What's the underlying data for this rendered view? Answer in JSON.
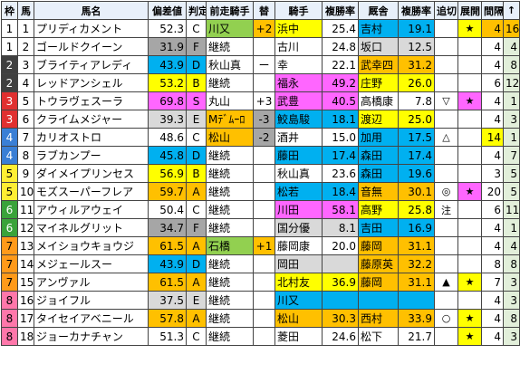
{
  "headers": [
    "枠",
    "馬",
    "馬名",
    "偏差値",
    "判定",
    "前走騎手",
    "替",
    "騎手",
    "複勝率",
    "厩舎",
    "複勝率",
    "追切",
    "展開",
    "間隔",
    "↑"
  ],
  "gate_colors": {
    "1": "#ffffff",
    "2": "#404040",
    "3": "#e03030",
    "4": "#3a7fd5",
    "5": "#ffee33",
    "6": "#3aa33a",
    "7": "#ff9a1a",
    "8": "#ff77aa"
  },
  "rows": [
    {
      "gate": "1",
      "num": "1",
      "name": "プリディカメント",
      "score": "52.3",
      "grade": "C",
      "prev": "川又",
      "chg": "+2",
      "jockey": "浜中",
      "jrate": "25.4",
      "stable": "吉村",
      "srate": "19.1",
      "oikiri": "",
      "tenkai": "★",
      "interval": "4",
      "up": "16",
      "cls": {
        "prev": "hl-green",
        "chg": "hl-orange",
        "jockey": "hl-yellow",
        "srate": "hl-cyan",
        "stable": "hl-cyan",
        "tenkai": "hl-yellow",
        "interval": "hl-orange",
        "up": "hl-orange"
      }
    },
    {
      "gate": "1",
      "num": "2",
      "name": "ゴールドクイーン",
      "score": "31.9",
      "grade": "F",
      "prev": "継続",
      "chg": "",
      "jockey": "古川",
      "jrate": "24.8",
      "stable": "坂口",
      "srate": "12.5",
      "oikiri": "",
      "tenkai": "",
      "interval": "4",
      "up": "4",
      "cls": {
        "score": "hl-gray",
        "grade": "hl-gray",
        "stable": "hl-lightgray",
        "srate": "hl-lightgray",
        "up": "hl-rowgreen"
      }
    },
    {
      "gate": "2",
      "num": "3",
      "name": "ブライティアレディ",
      "score": "43.9",
      "grade": "D",
      "prev": "秋山真",
      "chg": "ー",
      "jockey": "幸",
      "jrate": "22.1",
      "stable": "武幸四",
      "srate": "31.2",
      "oikiri": "",
      "tenkai": "",
      "interval": "4",
      "up": "8",
      "cls": {
        "score": "hl-cyan",
        "grade": "hl-cyan",
        "stable": "hl-orange",
        "srate": "hl-orange",
        "up": "hl-rowgreen"
      }
    },
    {
      "gate": "2",
      "num": "4",
      "name": "レッドアンシェル",
      "score": "53.2",
      "grade": "B",
      "prev": "継続",
      "chg": "",
      "jockey": "福永",
      "jrate": "49.2",
      "stable": "庄野",
      "srate": "26.0",
      "oikiri": "",
      "tenkai": "",
      "interval": "6",
      "up": "12",
      "cls": {
        "score": "hl-yellow",
        "grade": "hl-yellow",
        "jockey": "hl-pink",
        "jrate": "hl-pink",
        "stable": "hl-yellow",
        "srate": "hl-yellow",
        "up": "hl-rowgreen"
      }
    },
    {
      "gate": "3",
      "num": "5",
      "name": "トウラヴェスーラ",
      "score": "69.8",
      "grade": "S",
      "prev": "丸山",
      "chg": "+3",
      "jockey": "武豊",
      "jrate": "40.5",
      "stable": "高橋康",
      "srate": "7.8",
      "oikiri": "▽",
      "tenkai": "★",
      "interval": "4",
      "up": "1",
      "cls": {
        "score": "hl-pink",
        "grade": "hl-pink",
        "jockey": "hl-pink",
        "jrate": "hl-pink",
        "tenkai": "hl-pink",
        "up": "hl-rowgreen"
      }
    },
    {
      "gate": "3",
      "num": "6",
      "name": "クライムメジャー",
      "score": "39.3",
      "grade": "E",
      "prev": "Mﾃﾞﾑｰﾛ",
      "chg": "-3",
      "jockey": "鮫島駿",
      "jrate": "18.1",
      "stable": "渡辺",
      "srate": "25.0",
      "oikiri": "",
      "tenkai": "",
      "interval": "4",
      "up": "3",
      "cls": {
        "score": "hl-lightgray",
        "grade": "hl-lightgray",
        "prev": "hl-orange",
        "chg": "hl-gray",
        "jockey": "hl-cyan",
        "jrate": "hl-cyan",
        "stable": "hl-yellow",
        "srate": "hl-yellow",
        "up": "hl-rowgreen"
      }
    },
    {
      "gate": "4",
      "num": "7",
      "name": "カリオストロ",
      "score": "48.6",
      "grade": "C",
      "prev": "松山",
      "chg": "-2",
      "jockey": "酒井",
      "jrate": "15.0",
      "stable": "加用",
      "srate": "17.5",
      "oikiri": "△",
      "tenkai": "",
      "interval": "14",
      "up": "1",
      "cls": {
        "prev": "hl-orange",
        "chg": "hl-gray",
        "stable": "hl-cyan",
        "srate": "hl-cyan",
        "interval": "hl-yellow",
        "up": "hl-rowgreen"
      }
    },
    {
      "gate": "4",
      "num": "8",
      "name": "ラブカンプー",
      "score": "45.8",
      "grade": "D",
      "prev": "継続",
      "chg": "",
      "jockey": "藤田",
      "jrate": "17.4",
      "stable": "森田",
      "srate": "17.4",
      "oikiri": "",
      "tenkai": "",
      "interval": "4",
      "up": "7",
      "cls": {
        "score": "hl-cyan",
        "grade": "hl-cyan",
        "jockey": "hl-cyan",
        "jrate": "hl-cyan",
        "stable": "hl-cyan",
        "srate": "hl-cyan",
        "up": "hl-rowgreen"
      }
    },
    {
      "gate": "5",
      "num": "9",
      "name": "ダイメイプリンセス",
      "score": "56.9",
      "grade": "B",
      "prev": "継続",
      "chg": "",
      "jockey": "秋山真",
      "jrate": "23.6",
      "stable": "森田",
      "srate": "19.6",
      "oikiri": "",
      "tenkai": "",
      "interval": "3",
      "up": "5",
      "cls": {
        "score": "hl-yellow",
        "grade": "hl-yellow",
        "stable": "hl-cyan",
        "srate": "hl-cyan",
        "up": "hl-rowgreen"
      }
    },
    {
      "gate": "5",
      "num": "10",
      "name": "モズスーパーフレア",
      "score": "59.7",
      "grade": "A",
      "prev": "継続",
      "chg": "",
      "jockey": "松若",
      "jrate": "18.4",
      "stable": "音無",
      "srate": "30.1",
      "oikiri": "◎",
      "tenkai": "★",
      "interval": "20",
      "up": "5",
      "cls": {
        "score": "hl-orange",
        "grade": "hl-orange",
        "jockey": "hl-cyan",
        "jrate": "hl-cyan",
        "stable": "hl-orange",
        "srate": "hl-orange",
        "tenkai": "hl-pink",
        "up": "hl-rowgreen"
      }
    },
    {
      "gate": "6",
      "num": "11",
      "name": "アウィルアウェイ",
      "score": "50.4",
      "grade": "C",
      "prev": "継続",
      "chg": "",
      "jockey": "川田",
      "jrate": "58.1",
      "stable": "高野",
      "srate": "25.8",
      "oikiri": "注",
      "tenkai": "",
      "interval": "6",
      "up": "11",
      "cls": {
        "jockey": "hl-pink",
        "jrate": "hl-pink",
        "stable": "hl-yellow",
        "srate": "hl-yellow",
        "up": "hl-rowgreen"
      }
    },
    {
      "gate": "6",
      "num": "12",
      "name": "マイネルグリット",
      "score": "34.7",
      "grade": "F",
      "prev": "継続",
      "chg": "",
      "jockey": "国分優",
      "jrate": "8.1",
      "stable": "吉田",
      "srate": "16.9",
      "oikiri": "",
      "tenkai": "",
      "interval": "4",
      "up": "1",
      "cls": {
        "score": "hl-gray",
        "grade": "hl-gray",
        "jockey": "hl-lightgray",
        "jrate": "hl-lightgray",
        "stable": "hl-cyan",
        "srate": "hl-cyan",
        "up": "hl-rowgreen"
      }
    },
    {
      "gate": "7",
      "num": "13",
      "name": "メイショウキョウジ",
      "score": "61.5",
      "grade": "A",
      "prev": "石橋",
      "chg": "+1",
      "jockey": "藤岡康",
      "jrate": "20.0",
      "stable": "藤岡",
      "srate": "31.1",
      "oikiri": "",
      "tenkai": "",
      "interval": "4",
      "up": "4",
      "cls": {
        "score": "hl-orange",
        "grade": "hl-orange",
        "prev": "hl-green",
        "chg": "hl-orange",
        "stable": "hl-orange",
        "srate": "hl-orange",
        "up": "hl-rowgreen"
      }
    },
    {
      "gate": "7",
      "num": "14",
      "name": "メジェールスー",
      "score": "43.9",
      "grade": "D",
      "prev": "継続",
      "chg": "",
      "jockey": "岡田",
      "jrate": "",
      "stable": "藤原英",
      "srate": "32.2",
      "oikiri": "",
      "tenkai": "",
      "interval": "8",
      "up": "8",
      "cls": {
        "score": "hl-cyan",
        "grade": "hl-cyan",
        "jockey": "hl-lightgray",
        "jrate": "hl-lightgray",
        "stable": "hl-orange",
        "srate": "hl-orange",
        "up": "hl-rowgreen"
      }
    },
    {
      "gate": "7",
      "num": "15",
      "name": "アンヴァル",
      "score": "61.5",
      "grade": "A",
      "prev": "継続",
      "chg": "",
      "jockey": "北村友",
      "jrate": "36.9",
      "stable": "藤岡",
      "srate": "31.1",
      "oikiri": "▲",
      "tenkai": "★",
      "interval": "7",
      "up": "3",
      "cls": {
        "score": "hl-orange",
        "grade": "hl-orange",
        "jockey": "hl-yellow",
        "jrate": "hl-yellow",
        "stable": "hl-orange",
        "srate": "hl-orange",
        "tenkai": "hl-yellow",
        "up": "hl-rowgreen"
      }
    },
    {
      "gate": "8",
      "num": "16",
      "name": "ジョイフル",
      "score": "37.5",
      "grade": "E",
      "prev": "継続",
      "chg": "",
      "jockey": "川又",
      "jrate": "",
      "stable": "",
      "srate": "",
      "oikiri": "",
      "tenkai": "",
      "interval": "4",
      "up": "3",
      "cls": {
        "score": "hl-lightgray",
        "grade": "hl-lightgray",
        "jockey": "hl-cyan",
        "jrate": "hl-cyan",
        "stable": "hl-cyan",
        "srate": "hl-cyan",
        "up": "hl-rowgreen"
      }
    },
    {
      "gate": "8",
      "num": "17",
      "name": "タイセイアベニール",
      "score": "57.8",
      "grade": "A",
      "prev": "継続",
      "chg": "",
      "jockey": "松山",
      "jrate": "30.3",
      "stable": "西村",
      "srate": "33.9",
      "oikiri": "○",
      "tenkai": "★",
      "interval": "4",
      "up": "8",
      "cls": {
        "score": "hl-orange",
        "grade": "hl-orange",
        "jockey": "hl-orange",
        "jrate": "hl-orange",
        "stable": "hl-orange",
        "srate": "hl-orange",
        "tenkai": "hl-yellow",
        "up": "hl-rowgreen"
      }
    },
    {
      "gate": "8",
      "num": "18",
      "name": "ジョーカナチャン",
      "score": "51.3",
      "grade": "C",
      "prev": "継続",
      "chg": "",
      "jockey": "菱田",
      "jrate": "24.6",
      "stable": "松下",
      "srate": "21.7",
      "oikiri": "",
      "tenkai": "★",
      "interval": "4",
      "up": "3",
      "cls": {
        "tenkai": "hl-yellow",
        "up": "hl-rowgreen"
      }
    }
  ]
}
